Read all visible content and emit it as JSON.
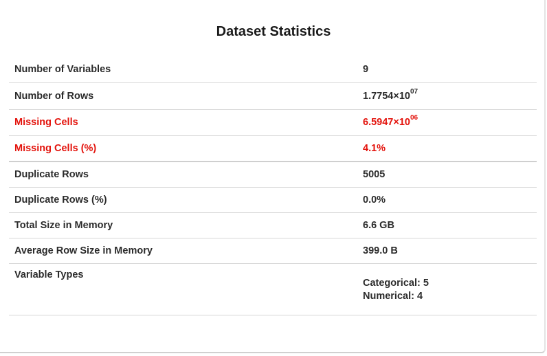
{
  "title": "Dataset Statistics",
  "warning_color": "#e3120b",
  "rows": [
    {
      "label": "Number of Variables",
      "value": "9"
    },
    {
      "label": "Number of Rows",
      "mantissa": "1.7754×10",
      "exponent": "07"
    },
    {
      "label": "Missing Cells",
      "mantissa": "6.5947×10",
      "exponent": "06",
      "warning": true
    },
    {
      "label": "Missing Cells (%)",
      "value": "4.1%",
      "warning": true
    },
    {
      "label": "Duplicate Rows",
      "value": "5005"
    },
    {
      "label": "Duplicate Rows (%)",
      "value": "0.0%"
    },
    {
      "label": "Total Size in Memory",
      "value": "6.6 GB"
    },
    {
      "label": "Average Row Size in Memory",
      "value": "399.0 B"
    },
    {
      "label": "Variable Types",
      "types": [
        "Categorical: 5",
        "Numerical: 4"
      ]
    }
  ]
}
